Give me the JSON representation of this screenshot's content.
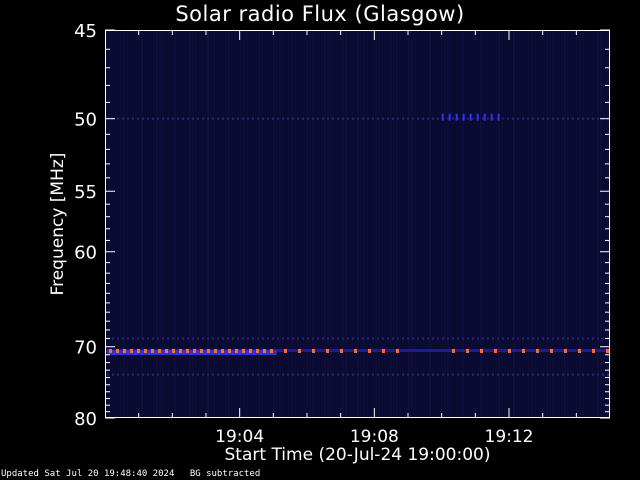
{
  "chart_data": {
    "type": "heatmap",
    "title": "Solar radio Flux (Glasgow)",
    "xlabel": "Start Time (20-Jul-24 19:00:00)",
    "ylabel": "Frequency [MHz]",
    "x_ticks": [
      {
        "minutes": 4,
        "label": "19:04"
      },
      {
        "minutes": 8,
        "label": "19:08"
      },
      {
        "minutes": 12,
        "label": "19:12"
      }
    ],
    "x_range_minutes": [
      0,
      15
    ],
    "y_ticks": [
      45,
      50,
      55,
      60,
      70,
      80
    ],
    "y_range_mhz": [
      45,
      80
    ],
    "y_scale": "reciprocal",
    "background_level": "dark navy (background subtracted)",
    "features": [
      {
        "name": "band",
        "freq_mhz": 70.4,
        "t_range_minutes": [
          0.0,
          15.0
        ],
        "intensity": "red-orange dashes"
      },
      {
        "name": "band",
        "freq_mhz": 50.0,
        "t_range_minutes": [
          0.0,
          15.0
        ],
        "intensity": "faint blue"
      },
      {
        "name": "band",
        "freq_mhz": 69.0,
        "t_range_minutes": [
          0.0,
          15.0
        ],
        "intensity": "faint blue"
      },
      {
        "name": "band",
        "freq_mhz": 73.6,
        "t_range_minutes": [
          0.0,
          15.0
        ],
        "intensity": "faint blue"
      },
      {
        "name": "burst",
        "freq_mhz": 50.0,
        "t_range_minutes": [
          10.0,
          11.8
        ],
        "intensity": "blue"
      }
    ],
    "colors": {
      "background": "#000000",
      "frame": "#ffffff",
      "plot_fill": "#0a0a30",
      "hot": "#ff6a30",
      "warm": "#3030ff"
    }
  },
  "footer": {
    "updated": "Updated Sat Jul 20 19:48:40 2024",
    "note": "BG subtracted"
  }
}
